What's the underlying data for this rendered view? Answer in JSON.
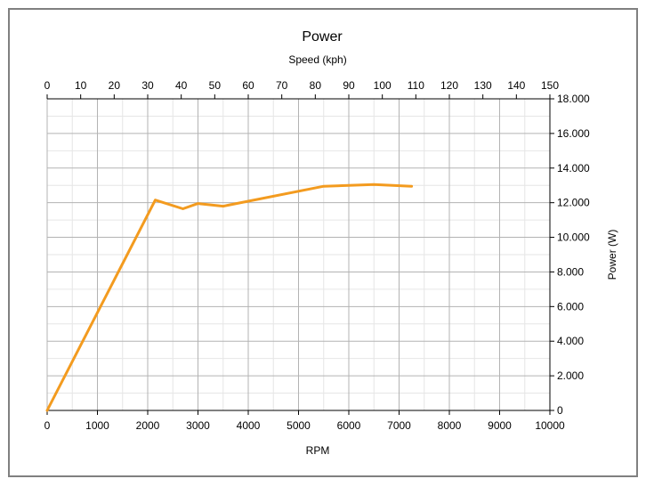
{
  "chart_data": {
    "type": "line",
    "title": "Power",
    "top_axis_label": "Speed (kph)",
    "xlabel": "RPM",
    "ylabel": "Power (W)",
    "xlim": [
      0,
      10000
    ],
    "ylim": [
      0,
      18000
    ],
    "top_xlim": [
      0,
      150
    ],
    "x_ticks": [
      "0",
      "1000",
      "2000",
      "3000",
      "4000",
      "5000",
      "6000",
      "7000",
      "8000",
      "9000",
      "10000"
    ],
    "top_ticks": [
      "0",
      "10",
      "20",
      "30",
      "40",
      "50",
      "60",
      "70",
      "80",
      "90",
      "100",
      "110",
      "120",
      "130",
      "140",
      "150"
    ],
    "y_ticks": [
      "0",
      "2.000",
      "4.000",
      "6.000",
      "8.000",
      "10.000",
      "12.000",
      "14.000",
      "16.000",
      "18.000"
    ],
    "grid": true,
    "series_color": "#f39b1f",
    "x": [
      0,
      2150,
      2700,
      3000,
      3500,
      5500,
      6500,
      7250
    ],
    "y": [
      0,
      12150,
      11650,
      11950,
      11800,
      12950,
      13050,
      12950
    ]
  }
}
